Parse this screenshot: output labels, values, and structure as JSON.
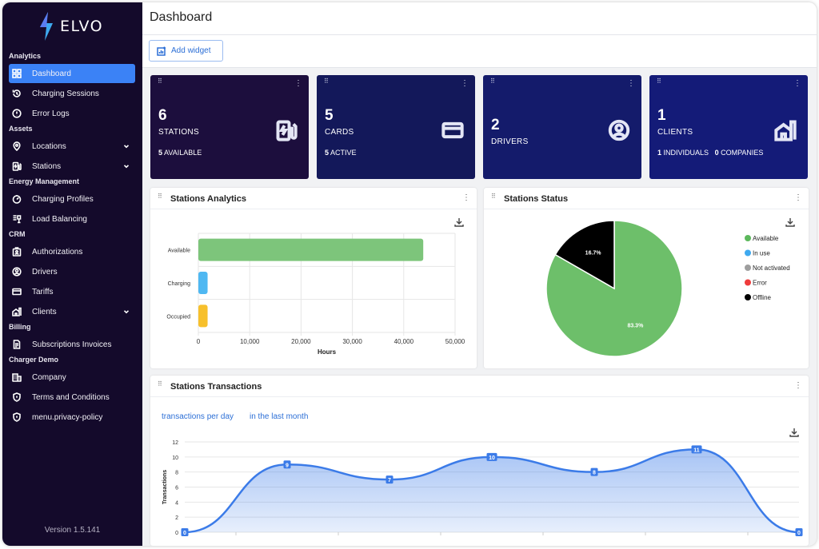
{
  "app": {
    "brand": "ELVO",
    "version": "Version 1.5.141"
  },
  "sidebar": {
    "sections": [
      {
        "title": "Analytics",
        "items": [
          {
            "label": "Dashboard",
            "icon": "dashboard-icon",
            "active": true
          },
          {
            "label": "Charging Sessions",
            "icon": "history-icon"
          },
          {
            "label": "Error Logs",
            "icon": "alert-circle-icon"
          }
        ]
      },
      {
        "title": "Assets",
        "items": [
          {
            "label": "Locations",
            "icon": "map-pin-icon",
            "expandable": true
          },
          {
            "label": "Stations",
            "icon": "ev-station-icon",
            "expandable": true
          }
        ]
      },
      {
        "title": "Energy Management",
        "items": [
          {
            "label": "Charging Profiles",
            "icon": "gauge-icon"
          },
          {
            "label": "Load Balancing",
            "icon": "balance-icon"
          }
        ]
      },
      {
        "title": "CRM",
        "items": [
          {
            "label": "Authorizations",
            "icon": "id-badge-icon"
          },
          {
            "label": "Drivers",
            "icon": "user-circle-icon"
          },
          {
            "label": "Tariffs",
            "icon": "card-icon"
          },
          {
            "label": "Clients",
            "icon": "building-icon",
            "expandable": true
          }
        ]
      },
      {
        "title": "Billing",
        "items": [
          {
            "label": "Subscriptions Invoices",
            "icon": "invoice-icon"
          }
        ]
      },
      {
        "title": "Charger Demo",
        "items": [
          {
            "label": "Company",
            "icon": "company-icon"
          },
          {
            "label": "Terms and Conditions",
            "icon": "shield-icon"
          },
          {
            "label": "menu.privacy-policy",
            "icon": "shield-icon"
          }
        ]
      }
    ]
  },
  "header": {
    "title": "Dashboard",
    "add_widget_label": "Add widget"
  },
  "cards": [
    {
      "number": "6",
      "label": "STATIONS",
      "sub": [
        [
          "5",
          "AVAILABLE"
        ]
      ],
      "color": "#1c0e3d",
      "icon": "ev-station-icon"
    },
    {
      "number": "5",
      "label": "CARDS",
      "sub": [
        [
          "5",
          "ACTIVE"
        ]
      ],
      "color": "#13185a",
      "icon": "card-icon"
    },
    {
      "number": "2",
      "label": "DRIVERS",
      "sub": [],
      "color": "#141b6b",
      "icon": "user-circle-icon"
    },
    {
      "number": "1",
      "label": "CLIENTS",
      "sub": [
        [
          "1",
          "INDIVIDUALS"
        ],
        [
          "0",
          "COMPANIES"
        ]
      ],
      "color": "#141b78",
      "icon": "building-icon"
    }
  ],
  "analytics": {
    "title": "Stations Analytics",
    "chart_data": {
      "type": "bar",
      "orientation": "horizontal",
      "categories": [
        "Available",
        "Charging",
        "Occupied"
      ],
      "values": [
        43800,
        1800,
        1800
      ],
      "colors": [
        "#7dc57b",
        "#4fb8f2",
        "#f7c02c"
      ],
      "xlabel": "Hours",
      "xlim": [
        0,
        50000
      ],
      "xticks": [
        "0",
        "10,000",
        "20,000",
        "30,000",
        "40,000",
        "50,000"
      ]
    }
  },
  "status": {
    "title": "Stations Status",
    "chart_data": {
      "type": "pie",
      "slices": [
        {
          "label": "Available",
          "value": 83.3,
          "text": "83.3%",
          "color": "#6dbf6a"
        },
        {
          "label": "Offline",
          "value": 16.7,
          "text": "16.7%",
          "color": "#000000"
        }
      ],
      "legend": [
        {
          "label": "Available",
          "color": "#5cb85c"
        },
        {
          "label": "In use",
          "color": "#3ea9ef"
        },
        {
          "label": "Not activated",
          "color": "#9e9e9e"
        },
        {
          "label": "Error",
          "color": "#ef3b3b"
        },
        {
          "label": "Offline",
          "color": "#000000"
        }
      ],
      "legend_position": "right"
    }
  },
  "transactions": {
    "title": "Stations Transactions",
    "filter_label": "transactions per day",
    "period_label": "in the last month",
    "chart_data": {
      "type": "area",
      "ylabel": "Transactions",
      "ylim": [
        0,
        12
      ],
      "yticks": [
        "0",
        "2",
        "4",
        "6",
        "8",
        "10",
        "12"
      ],
      "values": [
        0,
        9,
        7,
        10,
        8,
        11,
        0
      ],
      "labels": [
        "0",
        "9",
        "7",
        "10",
        "8",
        "11",
        "0"
      ],
      "color": "#3b7be8"
    }
  }
}
